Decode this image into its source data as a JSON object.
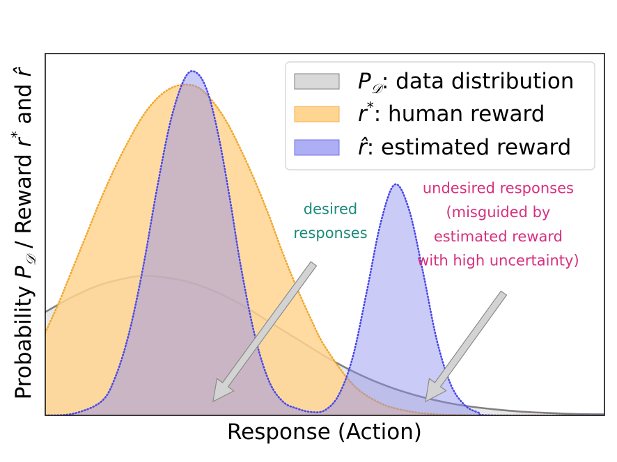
{
  "chart_data": {
    "type": "area",
    "xlabel": "Response (Action)",
    "ylabel": {
      "prefix": "Probability ",
      "p_symbol": "P",
      "p_sub": "𝒟",
      "mid": " / Reward ",
      "r_symbol": "r",
      "r_sup": "*",
      "and": "  and ",
      "rhat_symbol": "r̂"
    },
    "x_ticks": [],
    "y_ticks": [],
    "legend_position": "top-right",
    "grid": false,
    "xlim": [
      0,
      10
    ],
    "ylim": [
      0,
      1.05
    ],
    "series": [
      {
        "key": "data",
        "legend_symbol": "P",
        "legend_sub": "𝒟",
        "legend_text": ": data distribution",
        "fill": "#d9d9d9",
        "line": "#808080",
        "line_style": "solid",
        "x": [
          0,
          0.5,
          1.0,
          1.5,
          1.75,
          2.0,
          2.5,
          3.0,
          3.5,
          4.0,
          4.5,
          5.0,
          5.5,
          6.0,
          6.5,
          7.0,
          7.5,
          8.0,
          8.5,
          9.0,
          9.5,
          10.0
        ],
        "values": [
          0.3,
          0.345,
          0.38,
          0.4,
          0.405,
          0.403,
          0.39,
          0.362,
          0.322,
          0.272,
          0.222,
          0.172,
          0.128,
          0.092,
          0.064,
          0.043,
          0.028,
          0.018,
          0.011,
          0.007,
          0.004,
          0.003
        ]
      },
      {
        "key": "human",
        "legend_symbol": "r",
        "legend_sup": "*",
        "legend_text": ": human reward",
        "fill": "#ffd591",
        "line": "#f0a830",
        "line_style": "dotted",
        "x": [
          0,
          0.25,
          0.5,
          0.75,
          1.0,
          1.25,
          1.5,
          1.75,
          2.0,
          2.25,
          2.5,
          2.75,
          3.0,
          3.25,
          3.5,
          3.75,
          4.0,
          4.25,
          4.5,
          4.75,
          5.0,
          5.5,
          6.0,
          6.5,
          7.0,
          7.5,
          8.0,
          10.0
        ],
        "values": [
          0.24,
          0.33,
          0.43,
          0.53,
          0.63,
          0.72,
          0.8,
          0.87,
          0.92,
          0.95,
          0.96,
          0.95,
          0.91,
          0.85,
          0.77,
          0.68,
          0.58,
          0.47,
          0.37,
          0.28,
          0.2,
          0.09,
          0.035,
          0.012,
          0.003,
          0.001,
          0.0,
          0.0
        ]
      },
      {
        "key": "estimated",
        "legend_symbol": "r̂",
        "legend_text": ": estimated reward",
        "fill": "#8c8cf0",
        "line": "#4a4ae8",
        "line_style": "dotted",
        "x": [
          0,
          0.5,
          1.0,
          1.25,
          1.5,
          1.75,
          2.0,
          2.25,
          2.5,
          2.7,
          2.9,
          3.1,
          3.3,
          3.5,
          3.75,
          4.0,
          4.25,
          4.5,
          4.75,
          5.0,
          5.25,
          5.5,
          5.75,
          6.0,
          6.25,
          6.5,
          6.75,
          7.0,
          7.25,
          7.5,
          7.75,
          8.0,
          10.0
        ],
        "values": [
          0.0,
          0.005,
          0.04,
          0.11,
          0.24,
          0.43,
          0.66,
          0.86,
          0.98,
          0.995,
          0.94,
          0.81,
          0.63,
          0.43,
          0.23,
          0.1,
          0.04,
          0.02,
          0.01,
          0.015,
          0.06,
          0.17,
          0.36,
          0.56,
          0.67,
          0.6,
          0.42,
          0.22,
          0.09,
          0.03,
          0.008,
          0.0,
          0.0
        ]
      }
    ],
    "annotations": [
      {
        "key": "desired",
        "lines": [
          "desired",
          "responses"
        ],
        "color": "#1a8a7a",
        "text_x": 5.1,
        "text_y": [
          0.585,
          0.515
        ],
        "arrow_from": [
          4.8,
          0.44
        ],
        "arrow_to": [
          3.0,
          0.04
        ]
      },
      {
        "key": "undesired",
        "lines": [
          "undesired responses",
          "(misguided by",
          "estimated reward",
          "with high uncertainty)"
        ],
        "color": "#d6307f",
        "text_x": 8.1,
        "text_y": [
          0.645,
          0.575,
          0.505,
          0.435
        ],
        "arrow_from": [
          8.2,
          0.355
        ],
        "arrow_to": [
          6.8,
          0.04
        ]
      }
    ]
  }
}
